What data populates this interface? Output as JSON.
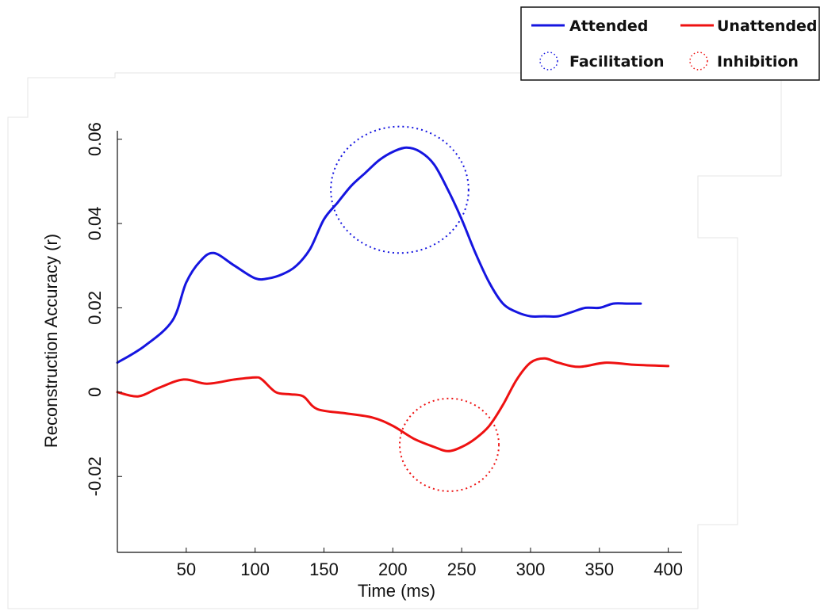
{
  "chart_data": {
    "type": "line",
    "xlabel": "Time (ms)",
    "ylabel": "Reconstruction Accuracy (r)",
    "xlim": [
      0,
      410
    ],
    "ylim": [
      -0.038,
      0.062
    ],
    "x_ticks": [
      50,
      100,
      150,
      200,
      250,
      300,
      350,
      400
    ],
    "y_ticks": [
      -0.02,
      0,
      0.02,
      0.04,
      0.06
    ],
    "y_tick_labels": [
      "-0.02",
      "0",
      "0.02",
      "0.04",
      "0.06"
    ],
    "grid": false,
    "legend_position": "top-right",
    "series": [
      {
        "name": "Attended",
        "color": "#1515e0",
        "x": [
          0,
          20,
          40,
          50,
          60,
          70,
          85,
          100,
          110,
          120,
          130,
          140,
          150,
          160,
          170,
          180,
          190,
          200,
          210,
          220,
          230,
          240,
          250,
          260,
          270,
          280,
          290,
          300,
          310,
          320,
          330,
          340,
          350,
          360,
          370,
          380
        ],
        "y": [
          0.007,
          0.011,
          0.017,
          0.026,
          0.031,
          0.033,
          0.03,
          0.027,
          0.027,
          0.028,
          0.03,
          0.034,
          0.041,
          0.045,
          0.049,
          0.052,
          0.055,
          0.057,
          0.058,
          0.057,
          0.054,
          0.048,
          0.041,
          0.033,
          0.026,
          0.021,
          0.019,
          0.018,
          0.018,
          0.018,
          0.019,
          0.02,
          0.02,
          0.021,
          0.021,
          0.021
        ]
      },
      {
        "name": "Unattended",
        "color": "#ee1111",
        "x": [
          0,
          15,
          30,
          48,
          65,
          85,
          100,
          105,
          115,
          125,
          135,
          145,
          165,
          185,
          200,
          215,
          230,
          240,
          250,
          260,
          270,
          280,
          290,
          300,
          310,
          320,
          335,
          355,
          375,
          400
        ],
        "y": [
          0.0,
          -0.001,
          0.001,
          0.003,
          0.002,
          0.003,
          0.0035,
          0.003,
          0.0,
          -0.0005,
          -0.001,
          -0.004,
          -0.005,
          -0.006,
          -0.008,
          -0.011,
          -0.013,
          -0.014,
          -0.013,
          -0.011,
          -0.008,
          -0.003,
          0.003,
          0.007,
          0.008,
          0.007,
          0.006,
          0.007,
          0.0065,
          0.0062
        ]
      }
    ],
    "annotations": [
      {
        "name": "Facilitation",
        "color": "#1515e0",
        "style": "dotted-circle",
        "cx": 205,
        "cy": 0.048,
        "rx": 50,
        "ry": 0.015
      },
      {
        "name": "Inhibition",
        "color": "#ee1111",
        "style": "dotted-circle",
        "cx": 241,
        "cy": -0.0125,
        "rx": 36,
        "ry": 0.011
      }
    ]
  }
}
